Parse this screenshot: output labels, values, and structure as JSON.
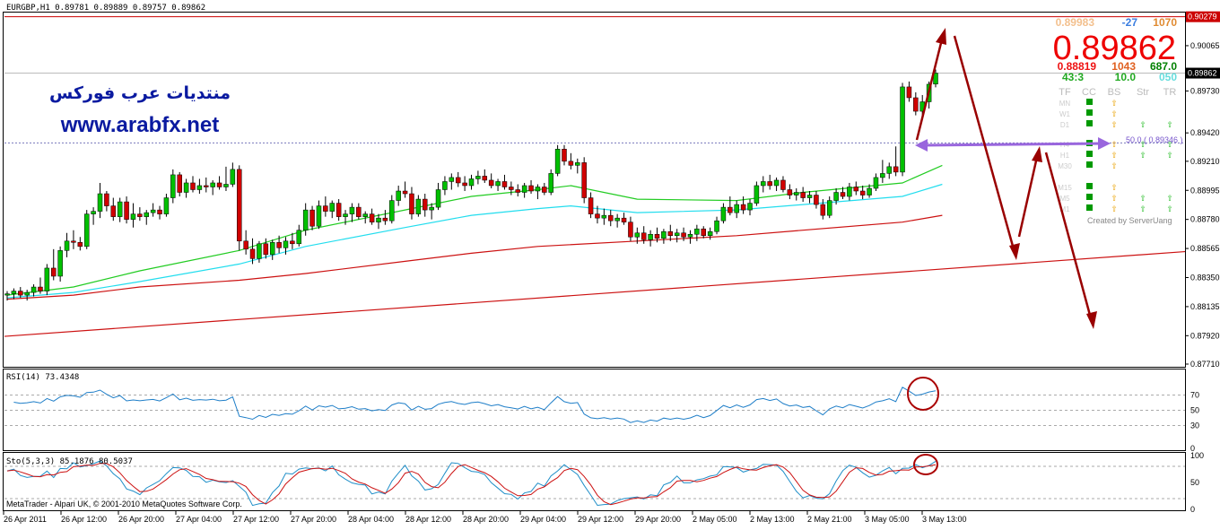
{
  "chart_header": "EURGBP,H1  0.89781 0.89889 0.89757 0.89862",
  "watermark": {
    "arabic": "منتديات عرب فوركس",
    "url": "www.arabfx.net"
  },
  "price_axis": {
    "ticks": [
      "0.90065",
      "0.89730",
      "0.89420",
      "0.89210",
      "0.88995",
      "0.88780",
      "0.88565",
      "0.88350",
      "0.88135",
      "0.87920",
      "0.87710"
    ],
    "top_tag": "0.90279",
    "current_tag": "0.89862",
    "ylim": [
      0.8769,
      0.9031
    ]
  },
  "info_panel": {
    "top_left": "0.89983",
    "top_mid": "-27",
    "top_right": "1070",
    "big_price": "0.89862",
    "row2": [
      "0.88819",
      "1043",
      "687.0"
    ],
    "row3": [
      "43:3",
      "10.0",
      "050"
    ],
    "headers": [
      "TF",
      "CC",
      "BS",
      "Str",
      "TR"
    ],
    "timeframes": [
      "MN",
      "W1",
      "D1",
      "H4",
      "H1",
      "M30",
      "M15",
      "M5",
      "M1"
    ],
    "fibo_label": "50.0 ( 0.89346 )",
    "credit": "Created by ServerUang"
  },
  "rsi": {
    "label": "RSI(14) 73.4348",
    "ticks": [
      "70",
      "50",
      "30",
      "0"
    ]
  },
  "sto": {
    "label": "Sto(5,3,3) 85.1876 80.5037",
    "ticks": [
      "100",
      "50",
      "0"
    ]
  },
  "footer": "MetaTrader - Alpari UK, © 2001-2010 MetaQuotes Software Corp.",
  "time_axis": [
    "26 Apr 2011",
    "26 Apr 12:00",
    "26 Apr 20:00",
    "27 Apr 04:00",
    "27 Apr 12:00",
    "27 Apr 20:00",
    "28 Apr 04:00",
    "28 Apr 12:00",
    "28 Apr 20:00",
    "29 Apr 04:00",
    "29 Apr 12:00",
    "29 Apr 20:00",
    "2 May 05:00",
    "2 May 13:00",
    "2 May 21:00",
    "3 May 05:00",
    "3 May 13:00"
  ],
  "colors": {
    "bull": "#00c000",
    "bear": "#d00000",
    "ma_green": "#22cc22",
    "ma_cyan": "#22ddee",
    "ma_red": "#cc1111",
    "arrow": "#990000",
    "fibo": "#9966dd",
    "rsi_line": "#1e7ec8",
    "sto_main": "#1e8ec8",
    "sto_signal": "#cc1111",
    "watermark_blue": "#0a1aa0"
  },
  "chart_data": {
    "type": "candlestick",
    "symbol": "EURGBP",
    "timeframe": "H1",
    "last_bar": {
      "open": 0.89781,
      "high": 0.89889,
      "low": 0.89757,
      "close": 0.89862
    },
    "candles": [
      {
        "o": 0.8822,
        "h": 0.8825,
        "l": 0.8818,
        "c": 0.8823
      },
      {
        "o": 0.8823,
        "h": 0.8827,
        "l": 0.8819,
        "c": 0.8825
      },
      {
        "o": 0.8825,
        "h": 0.8828,
        "l": 0.882,
        "c": 0.8822
      },
      {
        "o": 0.8822,
        "h": 0.8826,
        "l": 0.8818,
        "c": 0.8824
      },
      {
        "o": 0.8824,
        "h": 0.883,
        "l": 0.8821,
        "c": 0.8828
      },
      {
        "o": 0.8828,
        "h": 0.8835,
        "l": 0.8823,
        "c": 0.8825
      },
      {
        "o": 0.8825,
        "h": 0.8845,
        "l": 0.8822,
        "c": 0.8842
      },
      {
        "o": 0.8842,
        "h": 0.8856,
        "l": 0.8833,
        "c": 0.8836
      },
      {
        "o": 0.8836,
        "h": 0.8858,
        "l": 0.8832,
        "c": 0.8855
      },
      {
        "o": 0.8855,
        "h": 0.8868,
        "l": 0.885,
        "c": 0.8862
      },
      {
        "o": 0.8862,
        "h": 0.887,
        "l": 0.8856,
        "c": 0.8861
      },
      {
        "o": 0.8861,
        "h": 0.8865,
        "l": 0.8855,
        "c": 0.8858
      },
      {
        "o": 0.8858,
        "h": 0.8885,
        "l": 0.8856,
        "c": 0.8882
      },
      {
        "o": 0.8882,
        "h": 0.8887,
        "l": 0.8874,
        "c": 0.8884
      },
      {
        "o": 0.8884,
        "h": 0.8905,
        "l": 0.8879,
        "c": 0.8897
      },
      {
        "o": 0.8897,
        "h": 0.8899,
        "l": 0.8884,
        "c": 0.8888
      },
      {
        "o": 0.8888,
        "h": 0.8894,
        "l": 0.8877,
        "c": 0.888
      },
      {
        "o": 0.888,
        "h": 0.8894,
        "l": 0.8876,
        "c": 0.8891
      },
      {
        "o": 0.8891,
        "h": 0.8895,
        "l": 0.8875,
        "c": 0.8878
      },
      {
        "o": 0.8878,
        "h": 0.889,
        "l": 0.8872,
        "c": 0.8882
      },
      {
        "o": 0.8882,
        "h": 0.8887,
        "l": 0.8877,
        "c": 0.888
      },
      {
        "o": 0.888,
        "h": 0.8885,
        "l": 0.8874,
        "c": 0.8883
      },
      {
        "o": 0.8883,
        "h": 0.889,
        "l": 0.888,
        "c": 0.8885
      },
      {
        "o": 0.8885,
        "h": 0.8888,
        "l": 0.8878,
        "c": 0.8882
      },
      {
        "o": 0.8882,
        "h": 0.8897,
        "l": 0.888,
        "c": 0.8894
      },
      {
        "o": 0.8894,
        "h": 0.8915,
        "l": 0.889,
        "c": 0.8911
      },
      {
        "o": 0.8911,
        "h": 0.8913,
        "l": 0.8895,
        "c": 0.8898
      },
      {
        "o": 0.8898,
        "h": 0.8908,
        "l": 0.8894,
        "c": 0.8905
      },
      {
        "o": 0.8905,
        "h": 0.891,
        "l": 0.8898,
        "c": 0.89
      },
      {
        "o": 0.89,
        "h": 0.8908,
        "l": 0.8897,
        "c": 0.8903
      },
      {
        "o": 0.8903,
        "h": 0.8909,
        "l": 0.8898,
        "c": 0.8902
      },
      {
        "o": 0.8902,
        "h": 0.8907,
        "l": 0.8896,
        "c": 0.8905
      },
      {
        "o": 0.8905,
        "h": 0.891,
        "l": 0.89,
        "c": 0.8902
      },
      {
        "o": 0.8902,
        "h": 0.8917,
        "l": 0.8899,
        "c": 0.8904
      },
      {
        "o": 0.8904,
        "h": 0.892,
        "l": 0.8902,
        "c": 0.8915
      },
      {
        "o": 0.8915,
        "h": 0.8918,
        "l": 0.8855,
        "c": 0.8862
      },
      {
        "o": 0.8862,
        "h": 0.887,
        "l": 0.8852,
        "c": 0.8856
      },
      {
        "o": 0.8856,
        "h": 0.8864,
        "l": 0.8845,
        "c": 0.8849
      },
      {
        "o": 0.8849,
        "h": 0.8862,
        "l": 0.8846,
        "c": 0.886
      },
      {
        "o": 0.886,
        "h": 0.8864,
        "l": 0.8849,
        "c": 0.8852
      },
      {
        "o": 0.8852,
        "h": 0.8863,
        "l": 0.8848,
        "c": 0.8861
      },
      {
        "o": 0.8861,
        "h": 0.8866,
        "l": 0.8853,
        "c": 0.8857
      },
      {
        "o": 0.8857,
        "h": 0.8865,
        "l": 0.8852,
        "c": 0.8862
      },
      {
        "o": 0.8862,
        "h": 0.8868,
        "l": 0.8856,
        "c": 0.886
      },
      {
        "o": 0.886,
        "h": 0.8874,
        "l": 0.8858,
        "c": 0.887
      },
      {
        "o": 0.887,
        "h": 0.889,
        "l": 0.8866,
        "c": 0.8885
      },
      {
        "o": 0.8885,
        "h": 0.8888,
        "l": 0.887,
        "c": 0.8873
      },
      {
        "o": 0.8873,
        "h": 0.8892,
        "l": 0.8871,
        "c": 0.8888
      },
      {
        "o": 0.8888,
        "h": 0.8895,
        "l": 0.888,
        "c": 0.8884
      },
      {
        "o": 0.8884,
        "h": 0.8892,
        "l": 0.8879,
        "c": 0.889
      },
      {
        "o": 0.889,
        "h": 0.8893,
        "l": 0.8877,
        "c": 0.888
      },
      {
        "o": 0.888,
        "h": 0.8885,
        "l": 0.8874,
        "c": 0.8882
      },
      {
        "o": 0.8882,
        "h": 0.889,
        "l": 0.8876,
        "c": 0.8887
      },
      {
        "o": 0.8887,
        "h": 0.889,
        "l": 0.8878,
        "c": 0.888
      },
      {
        "o": 0.888,
        "h": 0.8884,
        "l": 0.8875,
        "c": 0.8882
      },
      {
        "o": 0.8882,
        "h": 0.8886,
        "l": 0.8874,
        "c": 0.8876
      },
      {
        "o": 0.8876,
        "h": 0.8882,
        "l": 0.8871,
        "c": 0.8879
      },
      {
        "o": 0.8879,
        "h": 0.8885,
        "l": 0.8874,
        "c": 0.8877
      },
      {
        "o": 0.8877,
        "h": 0.8896,
        "l": 0.8875,
        "c": 0.8892
      },
      {
        "o": 0.8892,
        "h": 0.8903,
        "l": 0.8888,
        "c": 0.8899
      },
      {
        "o": 0.8899,
        "h": 0.8906,
        "l": 0.8894,
        "c": 0.8897
      },
      {
        "o": 0.8897,
        "h": 0.8902,
        "l": 0.8878,
        "c": 0.8882
      },
      {
        "o": 0.8882,
        "h": 0.8896,
        "l": 0.888,
        "c": 0.8893
      },
      {
        "o": 0.8893,
        "h": 0.8897,
        "l": 0.888,
        "c": 0.8885
      },
      {
        "o": 0.8885,
        "h": 0.889,
        "l": 0.8878,
        "c": 0.8887
      },
      {
        "o": 0.8887,
        "h": 0.8905,
        "l": 0.8885,
        "c": 0.89
      },
      {
        "o": 0.89,
        "h": 0.891,
        "l": 0.8896,
        "c": 0.8906
      },
      {
        "o": 0.8906,
        "h": 0.8912,
        "l": 0.89,
        "c": 0.8909
      },
      {
        "o": 0.8909,
        "h": 0.8913,
        "l": 0.8902,
        "c": 0.8905
      },
      {
        "o": 0.8905,
        "h": 0.891,
        "l": 0.8899,
        "c": 0.8903
      },
      {
        "o": 0.8903,
        "h": 0.8911,
        "l": 0.89,
        "c": 0.8908
      },
      {
        "o": 0.8908,
        "h": 0.8914,
        "l": 0.8904,
        "c": 0.891
      },
      {
        "o": 0.891,
        "h": 0.8915,
        "l": 0.8905,
        "c": 0.8907
      },
      {
        "o": 0.8907,
        "h": 0.8912,
        "l": 0.8901,
        "c": 0.8903
      },
      {
        "o": 0.8903,
        "h": 0.8908,
        "l": 0.8899,
        "c": 0.8906
      },
      {
        "o": 0.8906,
        "h": 0.8911,
        "l": 0.89,
        "c": 0.8902
      },
      {
        "o": 0.8902,
        "h": 0.8906,
        "l": 0.8896,
        "c": 0.89
      },
      {
        "o": 0.89,
        "h": 0.8904,
        "l": 0.8895,
        "c": 0.8898
      },
      {
        "o": 0.8898,
        "h": 0.8905,
        "l": 0.8894,
        "c": 0.8903
      },
      {
        "o": 0.8903,
        "h": 0.8907,
        "l": 0.8897,
        "c": 0.8899
      },
      {
        "o": 0.8899,
        "h": 0.8904,
        "l": 0.8893,
        "c": 0.8902
      },
      {
        "o": 0.8902,
        "h": 0.8905,
        "l": 0.8896,
        "c": 0.8898
      },
      {
        "o": 0.8898,
        "h": 0.8915,
        "l": 0.8896,
        "c": 0.8912
      },
      {
        "o": 0.8912,
        "h": 0.8933,
        "l": 0.891,
        "c": 0.893
      },
      {
        "o": 0.893,
        "h": 0.8933,
        "l": 0.8918,
        "c": 0.8921
      },
      {
        "o": 0.8921,
        "h": 0.8927,
        "l": 0.8915,
        "c": 0.8918
      },
      {
        "o": 0.8918,
        "h": 0.8923,
        "l": 0.8912,
        "c": 0.892
      },
      {
        "o": 0.892,
        "h": 0.8924,
        "l": 0.889,
        "c": 0.8894
      },
      {
        "o": 0.8894,
        "h": 0.8898,
        "l": 0.8879,
        "c": 0.8882
      },
      {
        "o": 0.8882,
        "h": 0.8888,
        "l": 0.8875,
        "c": 0.8879
      },
      {
        "o": 0.8879,
        "h": 0.8886,
        "l": 0.8874,
        "c": 0.8881
      },
      {
        "o": 0.8881,
        "h": 0.8885,
        "l": 0.8873,
        "c": 0.8877
      },
      {
        "o": 0.8877,
        "h": 0.8882,
        "l": 0.8872,
        "c": 0.8879
      },
      {
        "o": 0.8879,
        "h": 0.8883,
        "l": 0.8874,
        "c": 0.8876
      },
      {
        "o": 0.8876,
        "h": 0.888,
        "l": 0.8862,
        "c": 0.8865
      },
      {
        "o": 0.8865,
        "h": 0.8872,
        "l": 0.886,
        "c": 0.8868
      },
      {
        "o": 0.8868,
        "h": 0.8873,
        "l": 0.886,
        "c": 0.8863
      },
      {
        "o": 0.8863,
        "h": 0.887,
        "l": 0.8858,
        "c": 0.8867
      },
      {
        "o": 0.8867,
        "h": 0.8872,
        "l": 0.8861,
        "c": 0.8864
      },
      {
        "o": 0.8864,
        "h": 0.8871,
        "l": 0.886,
        "c": 0.8869
      },
      {
        "o": 0.8869,
        "h": 0.8874,
        "l": 0.8862,
        "c": 0.8866
      },
      {
        "o": 0.8866,
        "h": 0.8871,
        "l": 0.8861,
        "c": 0.8868
      },
      {
        "o": 0.8868,
        "h": 0.8872,
        "l": 0.8862,
        "c": 0.8865
      },
      {
        "o": 0.8865,
        "h": 0.887,
        "l": 0.886,
        "c": 0.8867
      },
      {
        "o": 0.8867,
        "h": 0.8874,
        "l": 0.8862,
        "c": 0.8871
      },
      {
        "o": 0.8871,
        "h": 0.8873,
        "l": 0.8864,
        "c": 0.8866
      },
      {
        "o": 0.8866,
        "h": 0.8872,
        "l": 0.8863,
        "c": 0.8869
      },
      {
        "o": 0.8869,
        "h": 0.888,
        "l": 0.8867,
        "c": 0.8877
      },
      {
        "o": 0.8877,
        "h": 0.889,
        "l": 0.8875,
        "c": 0.8887
      },
      {
        "o": 0.8887,
        "h": 0.8895,
        "l": 0.8881,
        "c": 0.8883
      },
      {
        "o": 0.8883,
        "h": 0.8892,
        "l": 0.8879,
        "c": 0.8889
      },
      {
        "o": 0.8889,
        "h": 0.8895,
        "l": 0.8882,
        "c": 0.8885
      },
      {
        "o": 0.8885,
        "h": 0.8893,
        "l": 0.8881,
        "c": 0.889
      },
      {
        "o": 0.889,
        "h": 0.8906,
        "l": 0.8888,
        "c": 0.8903
      },
      {
        "o": 0.8903,
        "h": 0.891,
        "l": 0.8898,
        "c": 0.8906
      },
      {
        "o": 0.8906,
        "h": 0.8911,
        "l": 0.89,
        "c": 0.8903
      },
      {
        "o": 0.8903,
        "h": 0.8909,
        "l": 0.8899,
        "c": 0.8907
      },
      {
        "o": 0.8907,
        "h": 0.891,
        "l": 0.8898,
        "c": 0.89
      },
      {
        "o": 0.89,
        "h": 0.8904,
        "l": 0.8893,
        "c": 0.8896
      },
      {
        "o": 0.8896,
        "h": 0.8901,
        "l": 0.8892,
        "c": 0.8898
      },
      {
        "o": 0.8898,
        "h": 0.8902,
        "l": 0.8891,
        "c": 0.8894
      },
      {
        "o": 0.8894,
        "h": 0.8899,
        "l": 0.889,
        "c": 0.8896
      },
      {
        "o": 0.8896,
        "h": 0.8899,
        "l": 0.8886,
        "c": 0.8889
      },
      {
        "o": 0.8889,
        "h": 0.8893,
        "l": 0.8878,
        "c": 0.8881
      },
      {
        "o": 0.8881,
        "h": 0.8895,
        "l": 0.8879,
        "c": 0.8892
      },
      {
        "o": 0.8892,
        "h": 0.8901,
        "l": 0.8889,
        "c": 0.8898
      },
      {
        "o": 0.8898,
        "h": 0.8902,
        "l": 0.8893,
        "c": 0.8895
      },
      {
        "o": 0.8895,
        "h": 0.8905,
        "l": 0.8892,
        "c": 0.8902
      },
      {
        "o": 0.8902,
        "h": 0.8906,
        "l": 0.8896,
        "c": 0.8899
      },
      {
        "o": 0.8899,
        "h": 0.8903,
        "l": 0.8893,
        "c": 0.8896
      },
      {
        "o": 0.8896,
        "h": 0.8904,
        "l": 0.8894,
        "c": 0.8901
      },
      {
        "o": 0.8901,
        "h": 0.8912,
        "l": 0.8899,
        "c": 0.8909
      },
      {
        "o": 0.8909,
        "h": 0.8922,
        "l": 0.8905,
        "c": 0.8912
      },
      {
        "o": 0.8912,
        "h": 0.892,
        "l": 0.8908,
        "c": 0.8917
      },
      {
        "o": 0.8917,
        "h": 0.8932,
        "l": 0.891,
        "c": 0.8913
      },
      {
        "o": 0.8913,
        "h": 0.8979,
        "l": 0.891,
        "c": 0.8976
      },
      {
        "o": 0.8976,
        "h": 0.898,
        "l": 0.8965,
        "c": 0.8968
      },
      {
        "o": 0.8968,
        "h": 0.8972,
        "l": 0.8955,
        "c": 0.8958
      },
      {
        "o": 0.8958,
        "h": 0.897,
        "l": 0.8954,
        "c": 0.8965
      },
      {
        "o": 0.8965,
        "h": 0.898,
        "l": 0.896,
        "c": 0.8978
      },
      {
        "o": 0.89781,
        "h": 0.89889,
        "l": 0.89757,
        "c": 0.89862
      }
    ],
    "moving_averages": [
      {
        "color": "green",
        "points": [
          [
            0,
            0.8822
          ],
          [
            10,
            0.8828
          ],
          [
            20,
            0.884
          ],
          [
            35,
            0.8855
          ],
          [
            45,
            0.887
          ],
          [
            60,
            0.8885
          ],
          [
            70,
            0.8895
          ],
          [
            80,
            0.89
          ],
          [
            85,
            0.8903
          ],
          [
            95,
            0.8893
          ],
          [
            110,
            0.8892
          ],
          [
            120,
            0.8898
          ],
          [
            135,
            0.8905
          ],
          [
            141,
            0.8918
          ]
        ]
      },
      {
        "color": "cyan",
        "points": [
          [
            0,
            0.882
          ],
          [
            10,
            0.8824
          ],
          [
            20,
            0.8832
          ],
          [
            35,
            0.8845
          ],
          [
            45,
            0.8858
          ],
          [
            60,
            0.8872
          ],
          [
            70,
            0.8881
          ],
          [
            80,
            0.8886
          ],
          [
            85,
            0.8888
          ],
          [
            95,
            0.8883
          ],
          [
            110,
            0.8885
          ],
          [
            120,
            0.8889
          ],
          [
            135,
            0.8895
          ],
          [
            141,
            0.8904
          ]
        ]
      },
      {
        "color": "red",
        "points": [
          [
            0,
            0.8819
          ],
          [
            10,
            0.8822
          ],
          [
            20,
            0.8828
          ],
          [
            35,
            0.8833
          ],
          [
            45,
            0.8838
          ],
          [
            60,
            0.8847
          ],
          [
            70,
            0.8853
          ],
          [
            80,
            0.8858
          ],
          [
            95,
            0.8862
          ],
          [
            110,
            0.8866
          ],
          [
            120,
            0.887
          ],
          [
            135,
            0.8876
          ],
          [
            141,
            0.8881
          ]
        ]
      }
    ],
    "trendline": {
      "from": 0.87915,
      "to": 0.88542
    },
    "resistance_level": 0.90279,
    "dotted_level": 0.89346
  }
}
